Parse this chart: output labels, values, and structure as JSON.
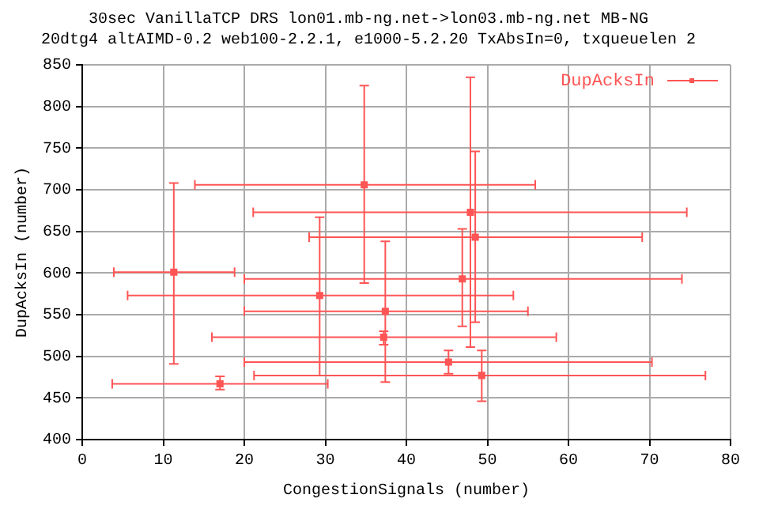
{
  "chart_data": {
    "type": "scatter",
    "title": "30sec VanillaTCP DRS lon01.mb-ng.net->lon03.mb-ng.net MB-NG",
    "subtitle": "20dtg4 altAIMD-0.2 web100-2.2.1, e1000-5.2.20 TxAbsIn=0, txqueuelen 2",
    "xlabel": "CongestionSignals (number)",
    "ylabel": "DupAcksIn (number)",
    "series": [
      {
        "name": "DupAcksIn",
        "color": "#ff5555",
        "x": [
          34.8,
          11.3,
          29.3,
          37.4,
          37.2,
          17,
          47.9,
          48.5,
          46.9,
          45.2,
          49.3
        ],
        "values": [
          706,
          601,
          573,
          554,
          523,
          467,
          673,
          643,
          593,
          493,
          477
        ],
        "errors": [
          [
            588,
            825
          ],
          [
            491,
            708
          ],
          [
            477,
            667
          ],
          [
            469,
            638
          ],
          [
            514,
            530
          ],
          [
            460,
            476
          ],
          [
            511,
            835
          ],
          [
            541,
            746
          ],
          [
            536,
            653
          ],
          [
            479,
            507
          ],
          [
            446,
            507
          ]
        ],
        "xerrors": [
          [
            13.9,
            55.9
          ],
          [
            3.9,
            18.8
          ],
          [
            5.6,
            53.2
          ],
          [
            20,
            55
          ],
          [
            16,
            58.5
          ],
          [
            3.7,
            30.3
          ],
          [
            21.1,
            74.6
          ],
          [
            28,
            69.1
          ],
          [
            20,
            74
          ],
          [
            20,
            70.3
          ],
          [
            21.2,
            76.9
          ]
        ]
      }
    ],
    "xlim": [
      0,
      80
    ],
    "xticks": [
      0,
      10,
      20,
      30,
      40,
      50,
      60,
      70,
      80
    ],
    "ylim": [
      400,
      850
    ],
    "yticks": [
      400,
      450,
      500,
      550,
      600,
      650,
      700,
      750,
      800,
      850
    ],
    "grid": true,
    "legend": "top right",
    "marker": "square"
  }
}
